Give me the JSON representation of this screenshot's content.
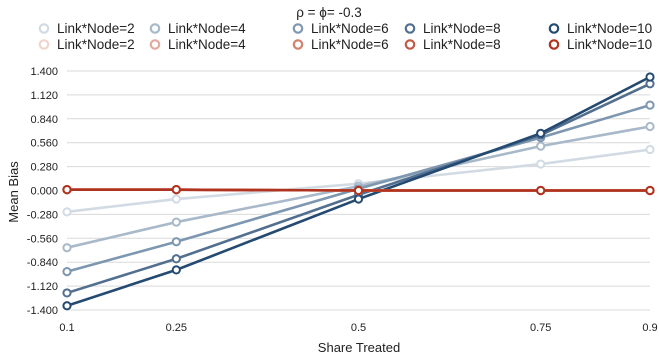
{
  "chart_data": {
    "type": "line",
    "title": "ρ = ϕ= -0.3",
    "xlabel": "Share Treated",
    "ylabel": "Mean Bias",
    "x": [
      0.1,
      0.25,
      0.5,
      0.75,
      0.9
    ],
    "x_tick_labels": [
      "0.1",
      "0.25",
      "0.5",
      "0.75",
      "0.9"
    ],
    "ylim": [
      -1.4,
      1.4
    ],
    "y_ticks": [
      1.4,
      1.12,
      0.84,
      0.56,
      0.28,
      0.0,
      -0.28,
      -0.56,
      -0.84,
      -1.12,
      -1.4
    ],
    "y_tick_labels": [
      "1.400",
      "1.120",
      "0.840",
      "0.560",
      "0.280",
      "0.000",
      "-0.280",
      "-0.560",
      "-0.840",
      "-1.120",
      "-1.400"
    ],
    "grid": "horizontal",
    "legend_position": "top",
    "series": [
      {
        "name": "Link*Node=2",
        "color": "#d2dbe3",
        "values": [
          -0.25,
          -0.1,
          0.08,
          0.31,
          0.48
        ]
      },
      {
        "name": "Link*Node=4",
        "color": "#a8b9c9",
        "values": [
          -0.67,
          -0.37,
          0.05,
          0.52,
          0.75
        ]
      },
      {
        "name": "Link*Node=6",
        "color": "#7e97b0",
        "values": [
          -0.95,
          -0.6,
          0.02,
          0.62,
          1.0
        ]
      },
      {
        "name": "Link*Node=8",
        "color": "#536f8f",
        "values": [
          -1.2,
          -0.8,
          -0.05,
          0.65,
          1.25
        ]
      },
      {
        "name": "Link*Node=10",
        "color": "#244a72",
        "values": [
          -1.35,
          -0.93,
          -0.1,
          0.67,
          1.33
        ]
      },
      {
        "name": "Link*Node=2",
        "color": "#f0d4cf",
        "values": [
          0.01,
          0.01,
          0.0,
          0.0,
          0.0
        ]
      },
      {
        "name": "Link*Node=4",
        "color": "#e2aa9f",
        "values": [
          0.01,
          0.01,
          0.0,
          0.0,
          0.0
        ]
      },
      {
        "name": "Link*Node=6",
        "color": "#d3806f",
        "values": [
          0.01,
          0.01,
          0.0,
          0.0,
          0.0
        ]
      },
      {
        "name": "Link*Node=8",
        "color": "#c25a47",
        "values": [
          0.01,
          0.01,
          0.0,
          0.0,
          0.0
        ]
      },
      {
        "name": "Link*Node=10",
        "color": "#b0331f",
        "values": [
          0.01,
          0.01,
          0.0,
          0.0,
          0.0
        ]
      }
    ]
  }
}
